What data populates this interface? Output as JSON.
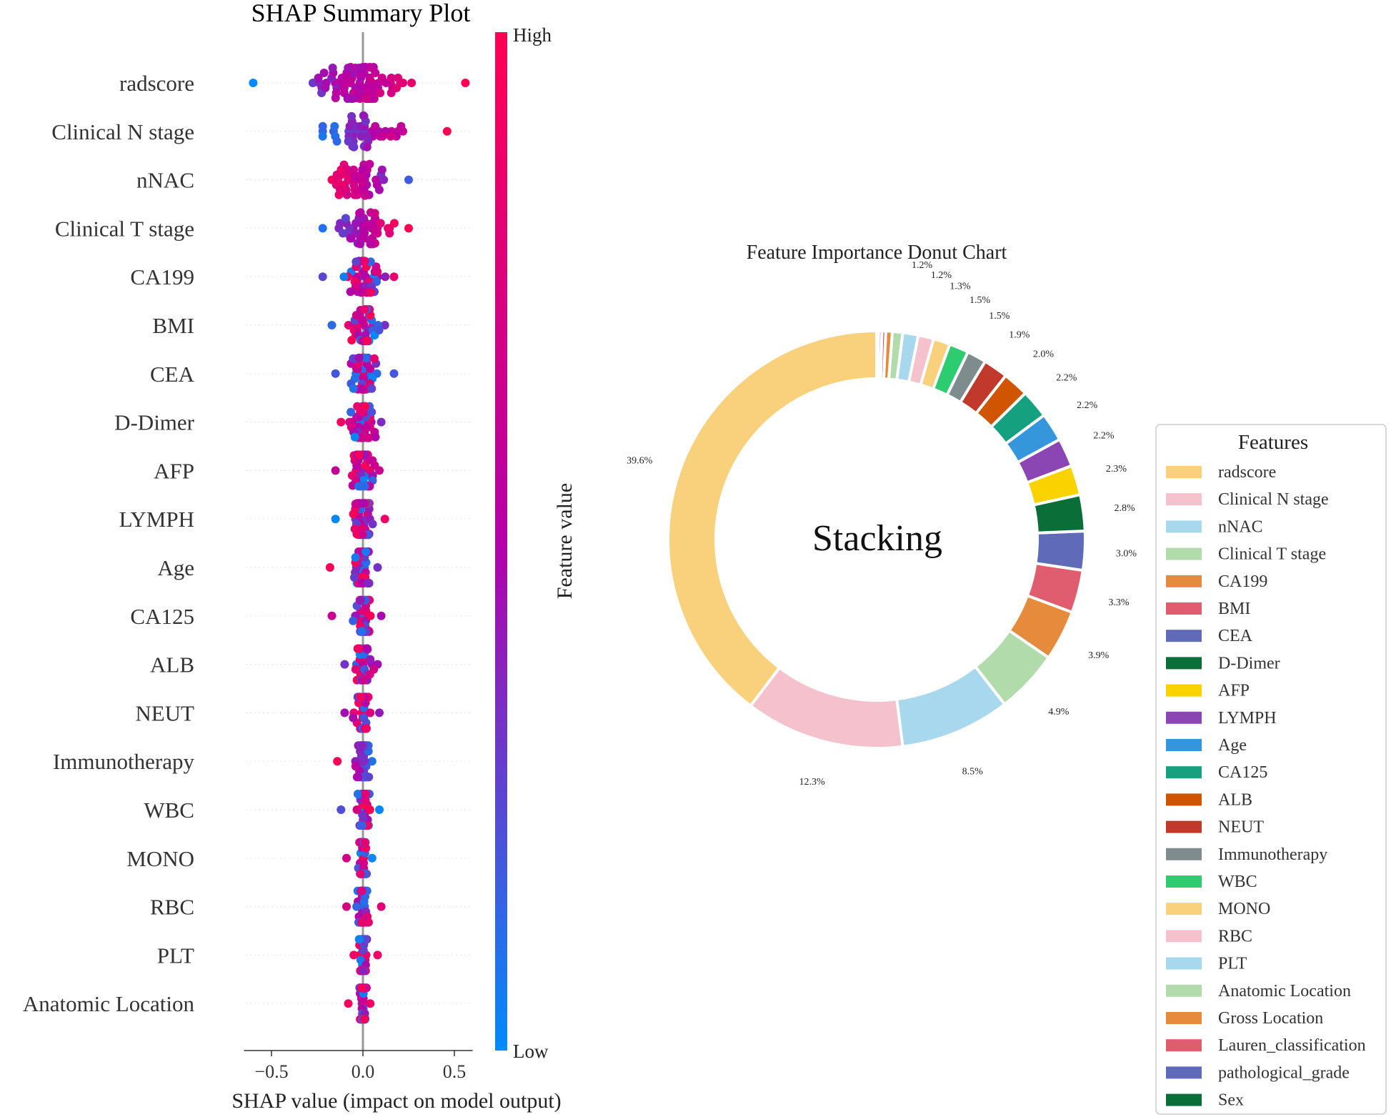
{
  "chart_data": [
    {
      "type": "scatter",
      "subtype": "shap_beeswarm",
      "title": "SHAP Summary Plot",
      "xlabel": "SHAP value (impact on model output)",
      "xlim": [
        -0.65,
        0.6
      ],
      "xticks": [
        -0.5,
        0.0,
        0.5
      ],
      "xtick_labels": [
        "−0.5",
        "0.0",
        "0.5"
      ],
      "colorbar": {
        "label": "Feature value",
        "high": "High",
        "low": "Low",
        "low_color": "#008bfb",
        "mid_color": "#b500a8",
        "high_color": "#ff0052"
      },
      "features": [
        {
          "name": "radscore",
          "min": -0.6,
          "max": 0.56,
          "spread": 0.52,
          "skew": 0.0
        },
        {
          "name": "Clinical N stage",
          "min": -0.22,
          "max": 0.46,
          "spread": 0.38,
          "skew": -0.02
        },
        {
          "name": "nNAC",
          "min": -0.17,
          "max": 0.25,
          "spread": 0.32,
          "skew": -0.02
        },
        {
          "name": "Clinical T stage",
          "min": -0.22,
          "max": 0.25,
          "spread": 0.25,
          "skew": 0.0
        },
        {
          "name": "CA199",
          "min": -0.22,
          "max": 0.17,
          "spread": 0.2,
          "skew": 0.0
        },
        {
          "name": "BMI",
          "min": -0.17,
          "max": 0.12,
          "spread": 0.15,
          "skew": 0.01
        },
        {
          "name": "CEA",
          "min": -0.15,
          "max": 0.17,
          "spread": 0.14,
          "skew": 0.0
        },
        {
          "name": "D-Dimer",
          "min": -0.12,
          "max": 0.1,
          "spread": 0.12,
          "skew": 0.0
        },
        {
          "name": "AFP",
          "min": -0.15,
          "max": 0.09,
          "spread": 0.12,
          "skew": 0.0
        },
        {
          "name": "LYMPH",
          "min": -0.15,
          "max": 0.12,
          "spread": 0.1,
          "skew": 0.0
        },
        {
          "name": "Age",
          "min": -0.18,
          "max": 0.08,
          "spread": 0.09,
          "skew": 0.0
        },
        {
          "name": "CA125",
          "min": -0.17,
          "max": 0.1,
          "spread": 0.09,
          "skew": 0.0
        },
        {
          "name": "ALB",
          "min": -0.1,
          "max": 0.08,
          "spread": 0.09,
          "skew": 0.0
        },
        {
          "name": "NEUT",
          "min": -0.1,
          "max": 0.09,
          "spread": 0.08,
          "skew": 0.0
        },
        {
          "name": "Immunotherapy",
          "min": -0.14,
          "max": 0.05,
          "spread": 0.07,
          "skew": 0.0
        },
        {
          "name": "WBC",
          "min": -0.12,
          "max": 0.09,
          "spread": 0.07,
          "skew": 0.0
        },
        {
          "name": "MONO",
          "min": -0.09,
          "max": 0.05,
          "spread": 0.05,
          "skew": 0.0
        },
        {
          "name": "RBC",
          "min": -0.09,
          "max": 0.1,
          "spread": 0.06,
          "skew": 0.0
        },
        {
          "name": "PLT",
          "min": -0.05,
          "max": 0.08,
          "spread": 0.05,
          "skew": 0.0
        },
        {
          "name": "Anatomic Location",
          "min": -0.08,
          "max": 0.04,
          "spread": 0.03,
          "skew": 0.0
        }
      ]
    },
    {
      "type": "pie",
      "subtype": "donut",
      "title": "Feature Importance Donut Chart",
      "center_text": "Stacking",
      "legend_title": "Features",
      "legend_position": "right",
      "slices": [
        {
          "label": "radscore",
          "value": 39.6,
          "color": "#f9d07b"
        },
        {
          "label": "Clinical N stage",
          "value": 12.3,
          "color": "#f5c1cc"
        },
        {
          "label": "nNAC",
          "value": 8.5,
          "color": "#a7d8ed"
        },
        {
          "label": "Clinical T stage",
          "value": 4.9,
          "color": "#b2dbac"
        },
        {
          "label": "CA199",
          "value": 3.9,
          "color": "#e68a3c"
        },
        {
          "label": "BMI",
          "value": 3.3,
          "color": "#e05d6f"
        },
        {
          "label": "CEA",
          "value": 3.0,
          "color": "#5f6bb8"
        },
        {
          "label": "D-Dimer",
          "value": 2.8,
          "color": "#0a6e38"
        },
        {
          "label": "AFP",
          "value": 2.3,
          "color": "#fad200"
        },
        {
          "label": "LYMPH",
          "value": 2.2,
          "color": "#8c46b4"
        },
        {
          "label": "Age",
          "value": 2.2,
          "color": "#3696dc"
        },
        {
          "label": "CA125",
          "value": 2.2,
          "color": "#15a080"
        },
        {
          "label": "ALB",
          "value": 2.0,
          "color": "#d15400"
        },
        {
          "label": "NEUT",
          "value": 1.9,
          "color": "#c0392b"
        },
        {
          "label": "Immunotherapy",
          "value": 1.5,
          "color": "#7f8c8d"
        },
        {
          "label": "WBC",
          "value": 1.5,
          "color": "#2ecc71"
        },
        {
          "label": "MONO",
          "value": 1.3,
          "color": "#f9d07b"
        },
        {
          "label": "RBC",
          "value": 1.2,
          "color": "#f5c1cc"
        },
        {
          "label": "PLT",
          "value": 1.2,
          "color": "#a7d8ed"
        },
        {
          "label": "Anatomic Location",
          "value": 0.8,
          "color": "#b2dbac"
        },
        {
          "label": "Gross Location",
          "value": 0.5,
          "color": "#e68a3c"
        },
        {
          "label": "Lauren_classification",
          "value": 0.3,
          "color": "#e05d6f"
        },
        {
          "label": "pathological_grade",
          "value": 0.25,
          "color": "#5f6bb8"
        },
        {
          "label": "Sex",
          "value": 0.15,
          "color": "#0a6e38"
        }
      ],
      "pct_labels": [
        "39.6%",
        "12.3%",
        "8.5%",
        "4.9%",
        "3.9%",
        "3.3%",
        "3.0%",
        "2.8%",
        "2.3%",
        "2.2%",
        "2.2%",
        "2.2%",
        "2.0%",
        "1.9%",
        "1.5%",
        "1.5%",
        "1.3%",
        "1.2%",
        "1.2%"
      ]
    }
  ]
}
